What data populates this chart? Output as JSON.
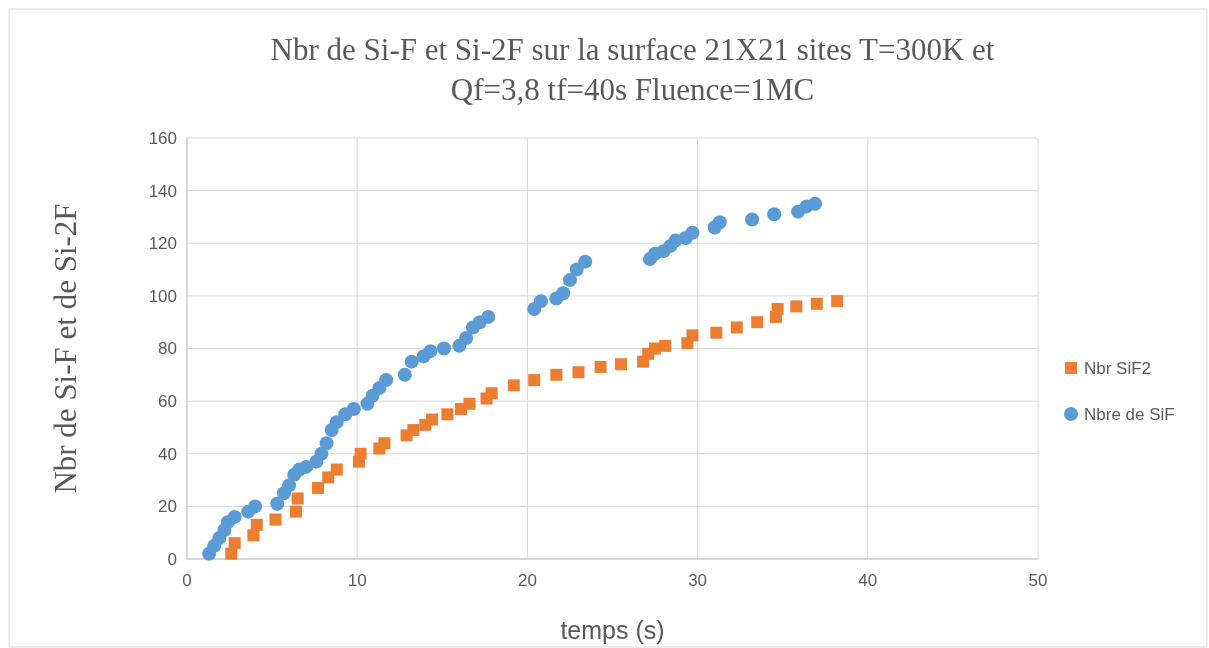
{
  "chart_data": {
    "type": "scatter",
    "title": "Nbr de Si-F et Si-2F sur la surface 21X21 sites T=300K et Qf=3,8  tf=40s  Fluence=1MC",
    "xlabel": "temps (s)",
    "ylabel": "Nbr de Si-F et de Si-2F",
    "xlim": [
      0,
      50
    ],
    "xticks": [
      0,
      10,
      20,
      30,
      40,
      50
    ],
    "ylim": [
      0,
      160
    ],
    "yticks": [
      0,
      20,
      40,
      60,
      80,
      100,
      120,
      140,
      160
    ],
    "grid": true,
    "legend": "right",
    "series": [
      {
        "name": "Nbr SiF2",
        "color": "#ed7d31",
        "marker": "square",
        "x": [
          2.6,
          2.8,
          3.9,
          4.1,
          5.2,
          6.4,
          6.5,
          7.7,
          8.3,
          8.8,
          10.1,
          10.2,
          11.3,
          11.6,
          12.9,
          13.3,
          14.0,
          14.4,
          15.3,
          16.1,
          16.6,
          17.6,
          17.9,
          19.2,
          20.4,
          21.7,
          23.0,
          24.3,
          25.5,
          26.8,
          27.1,
          27.5,
          28.1,
          29.4,
          29.7,
          31.1,
          32.3,
          33.5,
          34.6,
          34.7,
          35.8,
          37.0,
          38.2
        ],
        "values": [
          2,
          6,
          9,
          13,
          15,
          18,
          23,
          27,
          31,
          34,
          37,
          40,
          42,
          44,
          47,
          49,
          51,
          53,
          55,
          57,
          59,
          61,
          63,
          66,
          68,
          70,
          71,
          73,
          74,
          75,
          78,
          80,
          81,
          82,
          85,
          86,
          88,
          90,
          92,
          95,
          96,
          97,
          98
        ]
      },
      {
        "name": "Nbre de SiF",
        "color": "#5b9bd5",
        "marker": "circle",
        "x": [
          1.3,
          1.6,
          1.9,
          2.2,
          2.4,
          2.8,
          3.6,
          4.0,
          5.3,
          5.7,
          6.0,
          6.3,
          6.6,
          7.0,
          7.6,
          7.9,
          8.2,
          8.5,
          8.8,
          9.3,
          9.8,
          10.6,
          10.9,
          11.3,
          11.7,
          12.8,
          13.2,
          13.9,
          14.3,
          15.1,
          16.0,
          16.4,
          16.8,
          17.2,
          17.7,
          20.4,
          20.8,
          21.7,
          22.1,
          22.5,
          22.9,
          23.4,
          27.2,
          27.5,
          28.0,
          28.4,
          28.7,
          29.3,
          29.7,
          31.0,
          31.3,
          33.2,
          34.5,
          35.9,
          36.4,
          36.9
        ],
        "values": [
          2,
          5,
          8,
          11,
          14,
          16,
          18,
          20,
          21,
          25,
          28,
          32,
          34,
          35,
          37,
          40,
          44,
          49,
          52,
          55,
          57,
          59,
          62,
          65,
          68,
          70,
          75,
          77,
          79,
          80,
          81,
          84,
          88,
          90,
          92,
          95,
          98,
          99,
          101,
          106,
          110,
          113,
          114,
          116,
          117,
          119,
          121,
          122,
          124,
          126,
          128,
          129,
          131,
          132,
          134,
          135
        ]
      }
    ]
  }
}
